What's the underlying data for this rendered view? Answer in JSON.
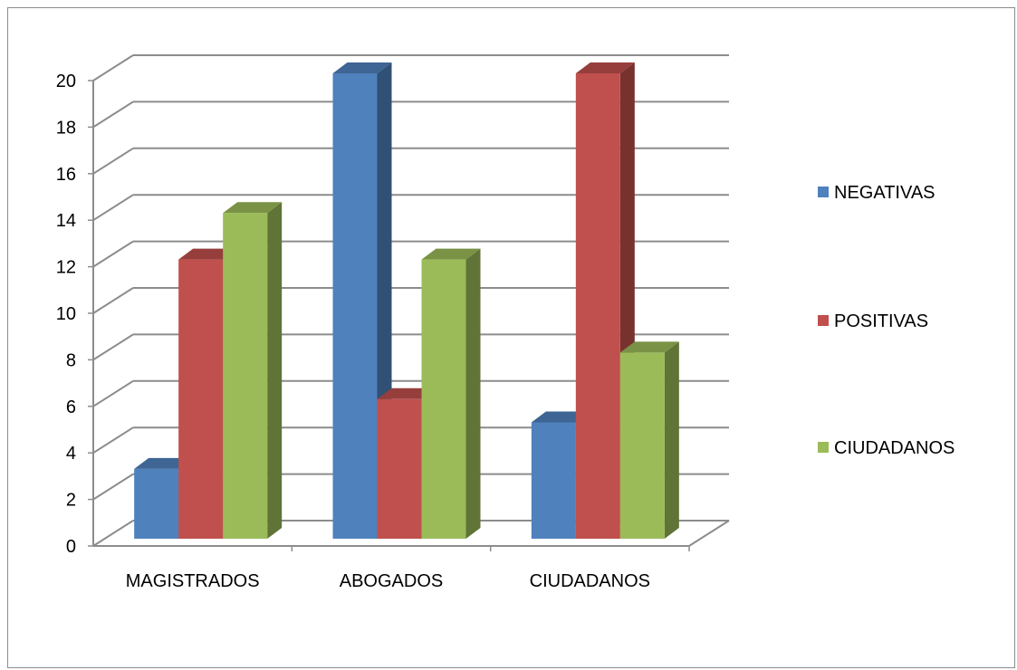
{
  "chart_data": {
    "type": "bar",
    "title": "",
    "xlabel": "",
    "ylabel": "",
    "categories": [
      "MAGISTRADOS",
      "ABOGADOS",
      "CIUDADANOS"
    ],
    "series": [
      {
        "name": "NEGATIVAS",
        "values": [
          3,
          20,
          5
        ],
        "color": "#4F81BD"
      },
      {
        "name": "POSITIVAS",
        "values": [
          12,
          6,
          20
        ],
        "color": "#C0504D"
      },
      {
        "name": "CIUDADANOS",
        "values": [
          14,
          12,
          8
        ],
        "color": "#9BBB59"
      }
    ],
    "ylim": [
      0,
      20
    ],
    "yticks": [
      "0",
      "2",
      "4",
      "6",
      "8",
      "10",
      "12",
      "14",
      "16",
      "18",
      "20"
    ],
    "grid": true,
    "legend": "right",
    "style": "3d-clustered-column"
  }
}
